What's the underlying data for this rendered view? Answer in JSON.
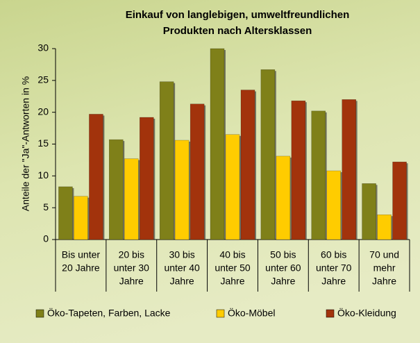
{
  "chart_data": {
    "type": "bar",
    "title": [
      "Einkauf von langlebigen, umweltfreundlichen",
      "Produkten nach Altersklassen"
    ],
    "y_label": "Anteile der \"Ja\"-Antworten in %",
    "categories": [
      [
        "Bis unter",
        "20 Jahre"
      ],
      [
        "20 bis",
        "unter 30",
        "Jahre"
      ],
      [
        "30 bis",
        "unter 40",
        "Jahre"
      ],
      [
        "40 bis",
        "unter 50",
        "Jahre"
      ],
      [
        "50 bis",
        "unter 60",
        "Jahre"
      ],
      [
        "60 bis",
        "unter 70",
        "Jahre"
      ],
      [
        "70 und",
        "mehr",
        "Jahre"
      ]
    ],
    "series": [
      {
        "name": "Öko-Tapeten, Farben, Lacke",
        "color": "#7f8019",
        "values": [
          8.3,
          15.7,
          24.8,
          30,
          26.7,
          20.2,
          8.8
        ]
      },
      {
        "name": "Öko-Möbel",
        "color": "#ffcc00",
        "values": [
          6.8,
          12.7,
          15.6,
          16.5,
          13.1,
          10.8,
          3.9
        ]
      },
      {
        "name": "Öko-Kleidung",
        "color": "#a2330c",
        "values": [
          19.7,
          19.2,
          21.3,
          23.5,
          21.8,
          22,
          12.2
        ]
      }
    ],
    "ylim": [
      0,
      30
    ],
    "yticks": [
      0,
      5,
      10,
      15,
      20,
      25,
      30
    ],
    "grid": false,
    "legend": "bottom"
  }
}
